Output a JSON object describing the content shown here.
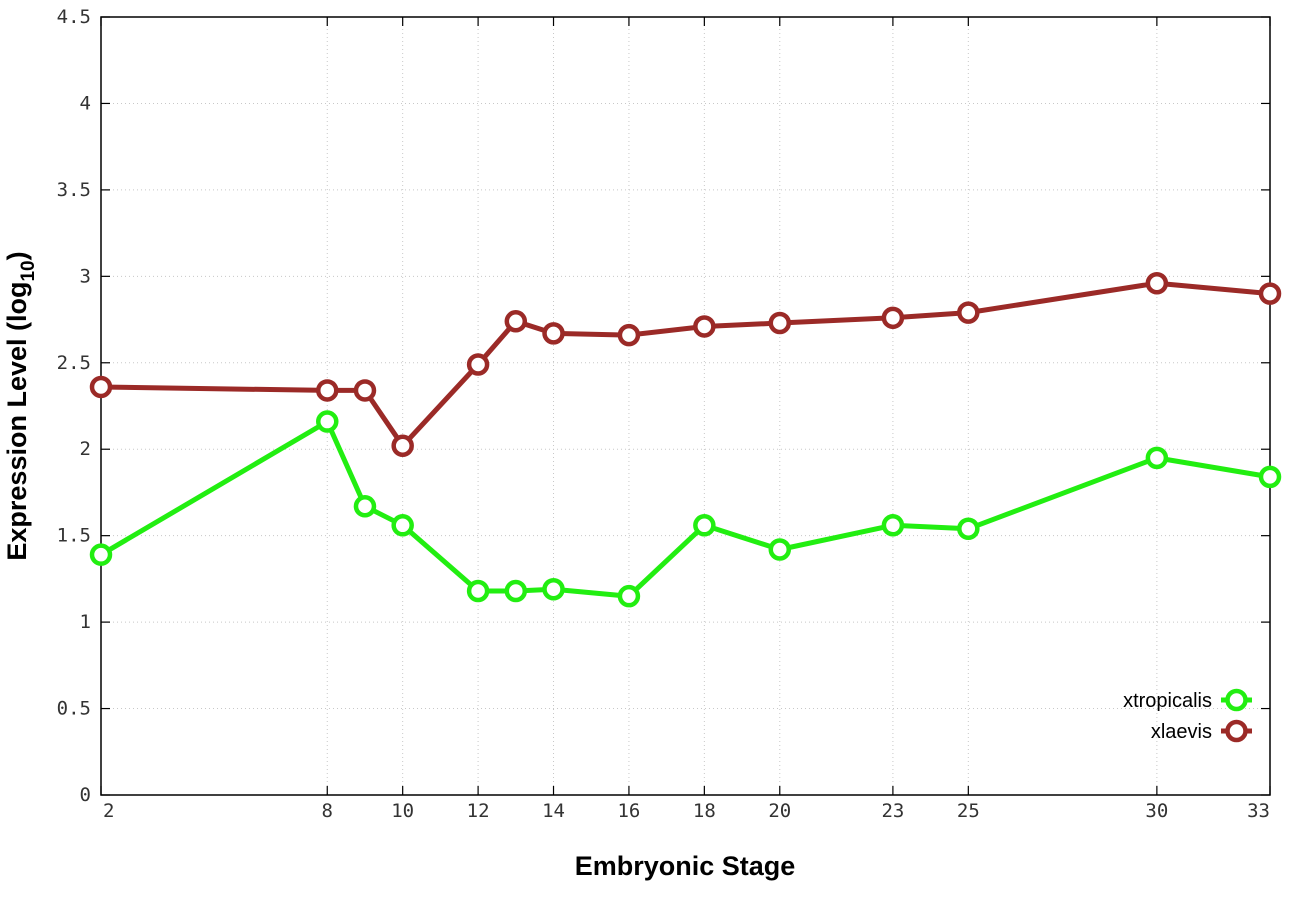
{
  "chart_data": {
    "type": "line",
    "title": "",
    "xlabel": "Embryonic Stage",
    "ylabel": {
      "main": "Expression Level (log",
      "sub": "10",
      "close": ")"
    },
    "x": [
      2,
      8,
      9,
      10,
      12,
      13,
      14,
      16,
      18,
      20,
      23,
      25,
      30,
      33
    ],
    "x_tick_values": [
      2,
      8,
      10,
      12,
      14,
      16,
      18,
      20,
      23,
      25,
      30,
      33
    ],
    "x_tick_labels": [
      "2",
      "8",
      "10",
      "12",
      "14",
      "16",
      "18",
      "20",
      "23",
      "25",
      "30",
      "33"
    ],
    "xlim": [
      2,
      33
    ],
    "ylim": [
      0,
      4.5
    ],
    "y_tick_values": [
      0,
      0.5,
      1,
      1.5,
      2,
      2.5,
      3,
      3.5,
      4,
      4.5
    ],
    "y_tick_labels": [
      "0",
      "0.5",
      "1",
      "1.5",
      "2",
      "2.5",
      "3",
      "3.5",
      "4",
      "4.5"
    ],
    "grid": true,
    "legend_position": "bottom-right",
    "series": [
      {
        "name": "xtropicalis",
        "color": "#22ee11",
        "values": [
          1.39,
          2.16,
          1.67,
          1.56,
          1.18,
          1.18,
          1.19,
          1.15,
          1.56,
          1.42,
          1.56,
          1.54,
          1.95,
          1.84
        ]
      },
      {
        "name": "xlaevis",
        "color": "#9b2a27",
        "values": [
          2.36,
          2.34,
          2.34,
          2.02,
          2.49,
          2.74,
          2.67,
          2.66,
          2.71,
          2.73,
          2.76,
          2.79,
          2.96,
          2.9
        ]
      }
    ]
  }
}
